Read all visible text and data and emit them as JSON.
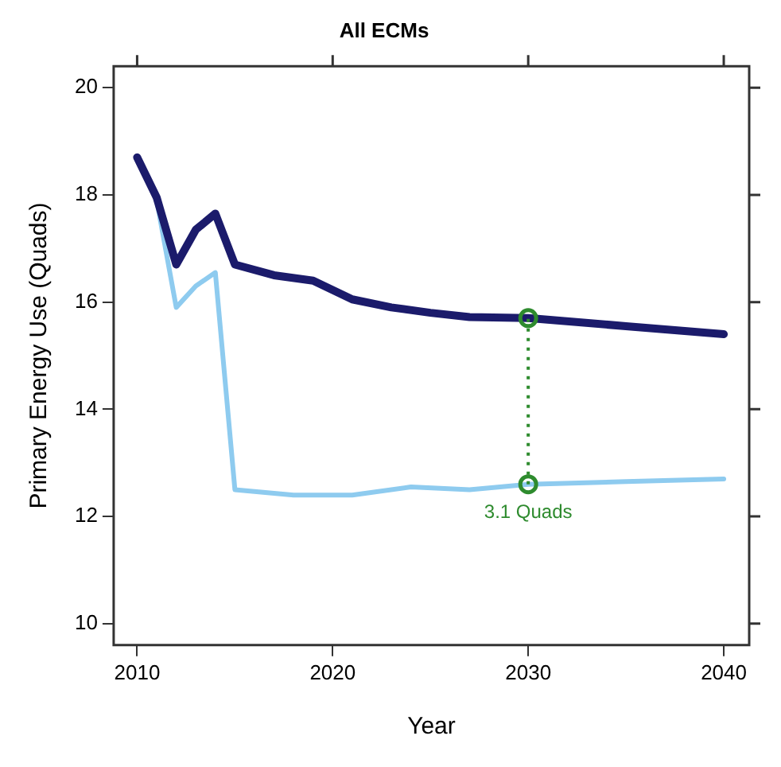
{
  "chart_data": {
    "type": "line",
    "title": "All ECMs",
    "xlabel": "Year",
    "ylabel": "Primary Energy Use (Quads)",
    "series": [
      {
        "color": "#1b1b6b",
        "x": [
          2010,
          2011,
          2012,
          2013,
          2014,
          2015,
          2017,
          2019,
          2021,
          2023,
          2025,
          2027,
          2030,
          2035,
          2040
        ],
        "values": [
          18.7,
          17.95,
          16.7,
          17.35,
          17.65,
          16.7,
          16.5,
          16.4,
          16.05,
          15.9,
          15.8,
          15.72,
          15.7,
          15.55,
          15.4
        ]
      },
      {
        "color": "#8ecbef",
        "x": [
          2010,
          2011,
          2012,
          2013,
          2014,
          2015,
          2018,
          2021,
          2024,
          2027,
          2030,
          2035,
          2040
        ],
        "values": [
          18.7,
          17.9,
          15.9,
          16.3,
          16.55,
          12.5,
          12.4,
          12.4,
          12.55,
          12.5,
          12.6,
          12.65,
          12.7
        ]
      }
    ],
    "annotations": [
      {
        "text": "3.1 Quads",
        "x": 2030,
        "y": 12.6
      }
    ],
    "xlim": [
      2008.8,
      2041.3
    ],
    "ylim": [
      9.6,
      20.4
    ],
    "xticks": [
      2010,
      2020,
      2030,
      2040
    ],
    "yticks": [
      10,
      12,
      14,
      16,
      18,
      20
    ],
    "grid": false,
    "legend": false,
    "marker": "none",
    "line_style": "solid"
  }
}
